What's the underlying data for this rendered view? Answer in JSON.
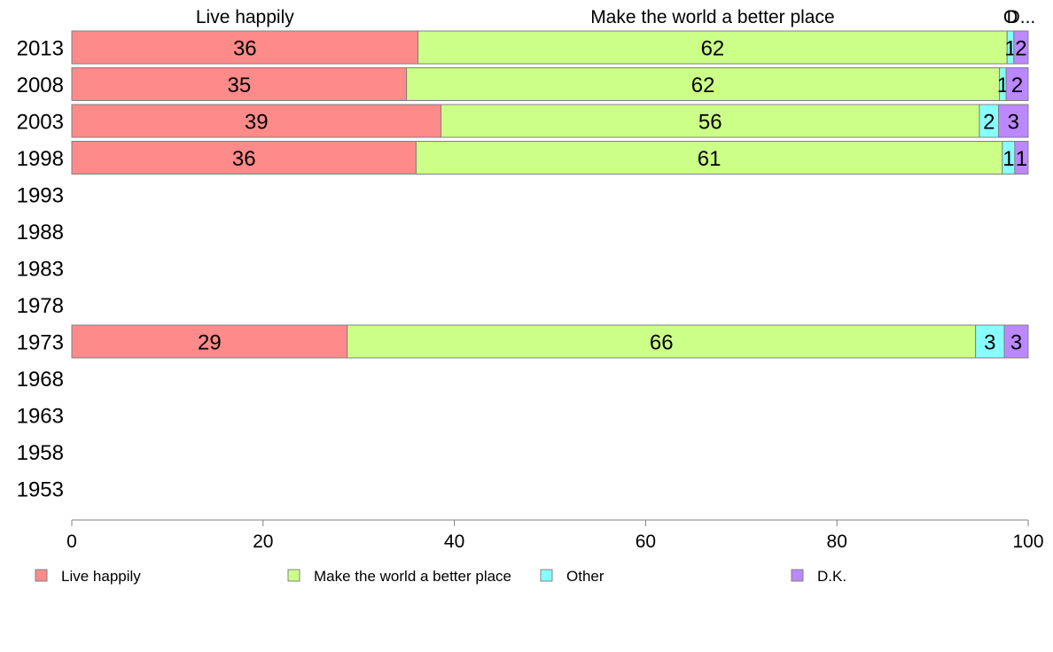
{
  "chart_data": {
    "type": "bar",
    "orientation": "horizontal",
    "stacked": true,
    "categories": [
      "2013",
      "2008",
      "2003",
      "1998",
      "1993",
      "1988",
      "1983",
      "1978",
      "1973",
      "1968",
      "1963",
      "1958",
      "1953"
    ],
    "series": [
      {
        "name": "Live happily",
        "color": "#ff8a8a",
        "values": [
          36.2,
          35,
          38.6,
          36,
          null,
          null,
          null,
          null,
          28.8,
          null,
          null,
          null,
          null
        ],
        "labels": [
          "36",
          "35",
          "39",
          "36",
          "",
          "",
          "",
          "",
          "29",
          "",
          "",
          "",
          ""
        ]
      },
      {
        "name": "Make the world a better place",
        "color": "#ccff88",
        "values": [
          61.6,
          62,
          56.3,
          61.3,
          null,
          null,
          null,
          null,
          65.7,
          null,
          null,
          null,
          null
        ],
        "labels": [
          "62",
          "62",
          "56",
          "61",
          "",
          "",
          "",
          "",
          "66",
          "",
          "",
          "",
          ""
        ]
      },
      {
        "name": "Other",
        "color": "#88ffff",
        "values": [
          0.7,
          0.7,
          2,
          1.3,
          null,
          null,
          null,
          null,
          3,
          null,
          null,
          null,
          null
        ],
        "labels": [
          "1",
          "1",
          "2",
          "1",
          "",
          "",
          "",
          "",
          "3",
          "",
          "",
          "",
          ""
        ]
      },
      {
        "name": "D.K.",
        "color": "#bb88ff",
        "values": [
          1.5,
          2.3,
          3.1,
          1.4,
          null,
          null,
          null,
          null,
          2.5,
          null,
          null,
          null,
          null
        ],
        "labels": [
          "2",
          "2",
          "3",
          "1",
          "",
          "",
          "",
          "",
          "3",
          "",
          "",
          "",
          ""
        ]
      }
    ],
    "column_headers": [
      "Live happily",
      "Make the world a better place",
      "O",
      "D..."
    ],
    "xlim": [
      0,
      100
    ],
    "xticks": [
      0,
      20,
      40,
      60,
      80,
      100
    ],
    "legend_position": "bottom"
  }
}
